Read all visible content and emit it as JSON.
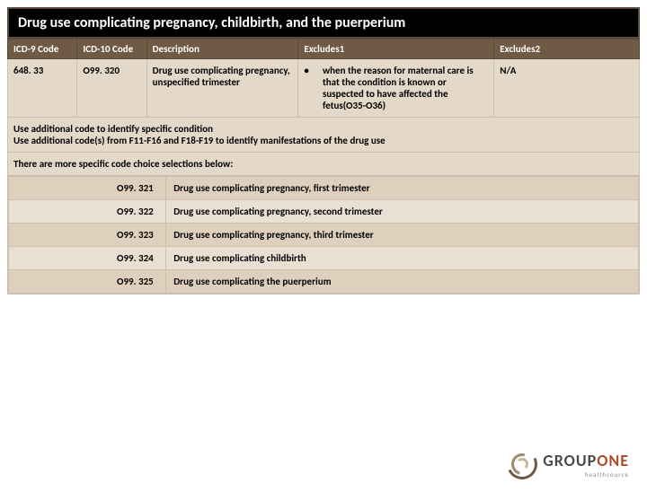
{
  "title": "Drug use complicating pregnancy, childbirth, and the puerperium",
  "headers": {
    "icd9": "ICD-9 Code",
    "icd10": "ICD-10 Code",
    "desc": "Description",
    "ex1": "Excludes1",
    "ex2": "Excludes2"
  },
  "row": {
    "icd9": "648. 33",
    "icd10": "O99. 320",
    "desc": "Drug use complicating pregnancy, unspecified trimester",
    "bullet": "•",
    "ex1": "when the reason for maternal care is that the condition is known or suspected to have affected the fetus(O35-O36)",
    "ex2": "N/A"
  },
  "note1": "Use additional code to identify specific condition",
  "note2": "Use additional code(s) from F11-F16 and F18-F19 to identify manifestations of the drug use",
  "subhead": "There are more specific code choice selections below:",
  "subrows": [
    {
      "code": "O99. 321",
      "desc": "Drug use complicating pregnancy, first trimester"
    },
    {
      "code": "O99. 322",
      "desc": "Drug use complicating pregnancy, second trimester"
    },
    {
      "code": "O99. 323",
      "desc": "Drug use complicating pregnancy, third trimester"
    },
    {
      "code": "O99. 324",
      "desc": "Drug use complicating childbirth"
    },
    {
      "code": "O99. 325",
      "desc": "Drug use complicating the puerperium"
    }
  ],
  "logo": {
    "part1": "GROUP",
    "part2": "ONE",
    "sub": "healthsource"
  }
}
